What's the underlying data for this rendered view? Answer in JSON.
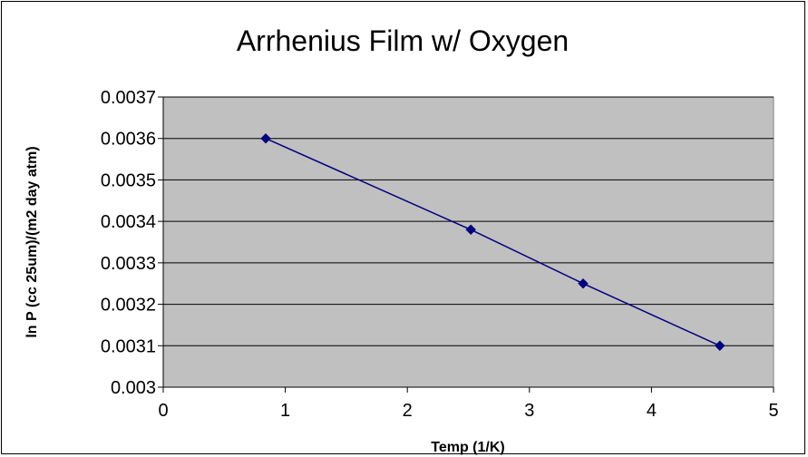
{
  "chart_data": {
    "type": "line",
    "title": "Arrhenius Film w/ Oxygen",
    "xlabel": "Temp (1/K)",
    "ylabel": "ln P (cc 25um)/(m2 day atm)",
    "xlim": [
      0,
      5
    ],
    "ylim": [
      0.003,
      0.0037
    ],
    "x_ticks": [
      "0",
      "1",
      "2",
      "3",
      "4",
      "5"
    ],
    "y_ticks": [
      "0.003",
      "0.0031",
      "0.0032",
      "0.0033",
      "0.0034",
      "0.0035",
      "0.0036",
      "0.0037"
    ],
    "grid": true,
    "legend": "none",
    "series": [
      {
        "x": [
          0.84,
          2.52,
          3.44,
          4.56
        ],
        "y": [
          0.0036,
          0.00338,
          0.00325,
          0.0031
        ],
        "color": "#000080",
        "marker": "diamond"
      }
    ],
    "plot_background": "#c0c0c0",
    "gridline_color": "#000000"
  }
}
